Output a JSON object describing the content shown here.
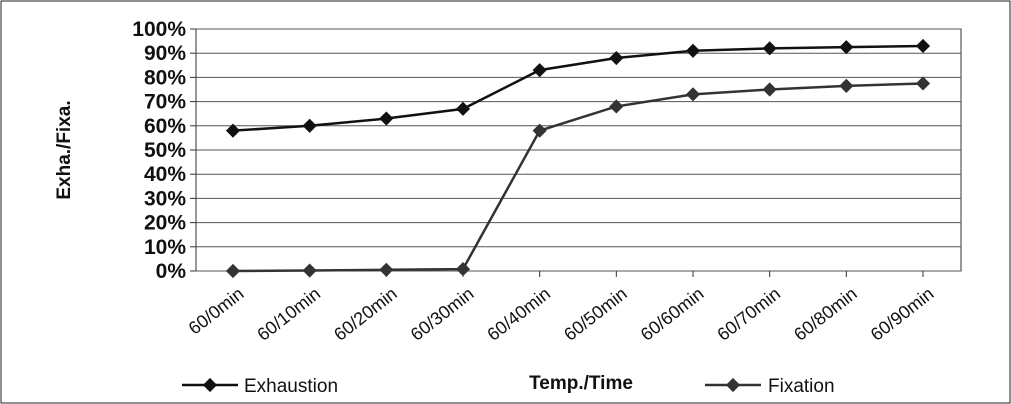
{
  "chart_data": {
    "type": "line",
    "title": "",
    "xlabel": "Temp./Time",
    "ylabel": "Exha./Fixa.",
    "categories": [
      "60/0min",
      "60/10min",
      "60/20min",
      "60/30min",
      "60/40min",
      "60/50min",
      "60/60min",
      "60/70min",
      "60/80min",
      "60/90min"
    ],
    "y_tick_labels": [
      "0%",
      "10%",
      "20%",
      "30%",
      "40%",
      "50%",
      "60%",
      "70%",
      "80%",
      "90%",
      "100%"
    ],
    "ylim": [
      0,
      100
    ],
    "grid": true,
    "legend_position": "bottom",
    "series": [
      {
        "name": "Exhaustion",
        "x": [
          "60/0min",
          "60/10min",
          "60/20min",
          "60/30min",
          "60/40min",
          "60/50min",
          "60/60min",
          "60/70min",
          "60/80min",
          "60/90min"
        ],
        "values": [
          58,
          60,
          63,
          67,
          83,
          88,
          91,
          92,
          92.5,
          93
        ],
        "color": "#111111"
      },
      {
        "name": "Fixation",
        "x": [
          "60/0min",
          "60/10min",
          "60/20min",
          "60/30min",
          "60/40min",
          "60/50min",
          "60/60min",
          "60/70min",
          "60/80min",
          "60/90min"
        ],
        "values": [
          0,
          0.2,
          0.5,
          0.8,
          58,
          68,
          73,
          75,
          76.5,
          77.5
        ],
        "color": "#333333"
      }
    ]
  }
}
